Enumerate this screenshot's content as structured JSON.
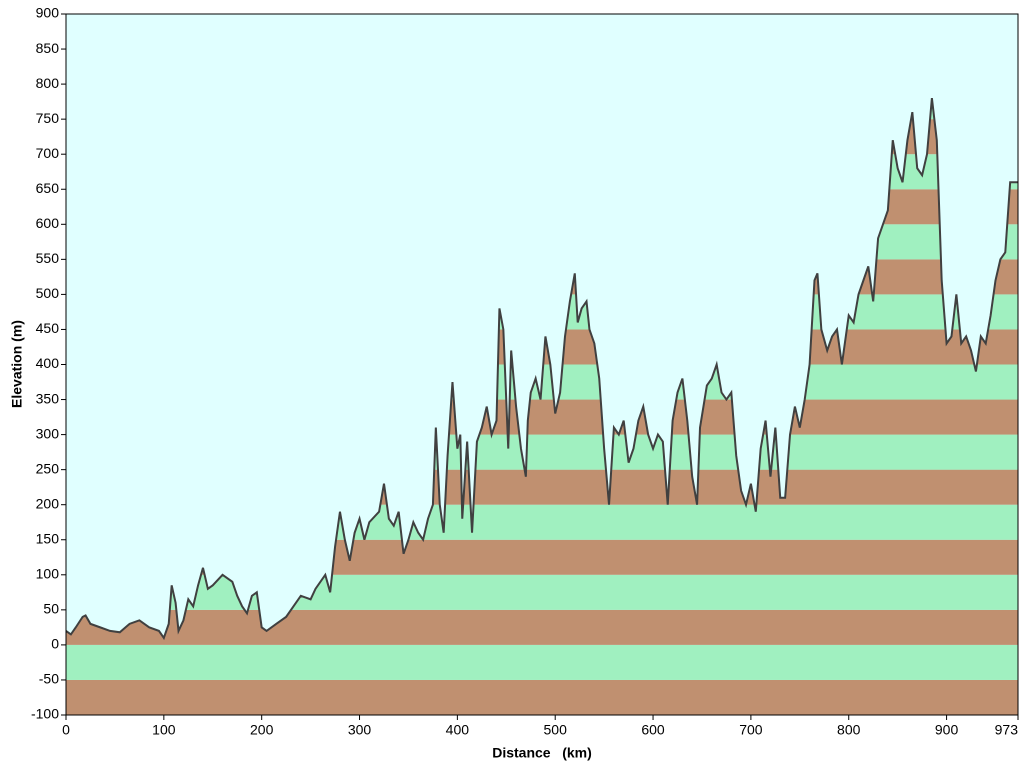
{
  "chart_data": {
    "type": "elevation",
    "xlabel": "Distance   (km)",
    "ylabel": "Elevation (m)",
    "xlim": [
      0,
      973
    ],
    "ylim": [
      -100,
      900
    ],
    "xticks": [
      0,
      100,
      200,
      300,
      400,
      500,
      600,
      700,
      800,
      900,
      973
    ],
    "yticks": [
      -100,
      -50,
      0,
      50,
      100,
      150,
      200,
      250,
      300,
      350,
      400,
      450,
      500,
      550,
      600,
      650,
      700,
      750,
      800,
      850,
      900
    ],
    "background": "#e0ffff",
    "band_colors": [
      "#c09070",
      "#a0f0c0"
    ],
    "line_color": "#404040",
    "x": [
      0,
      5,
      10,
      17,
      20,
      25,
      35,
      45,
      55,
      65,
      75,
      85,
      95,
      100,
      105,
      108,
      112,
      115,
      120,
      125,
      130,
      135,
      140,
      145,
      150,
      160,
      170,
      175,
      180,
      185,
      190,
      195,
      200,
      205,
      215,
      225,
      235,
      240,
      250,
      255,
      265,
      270,
      275,
      280,
      285,
      290,
      295,
      300,
      305,
      310,
      320,
      325,
      330,
      335,
      340,
      345,
      350,
      355,
      360,
      365,
      370,
      375,
      378,
      382,
      386,
      390,
      395,
      400,
      403,
      405,
      410,
      415,
      420,
      425,
      430,
      435,
      440,
      443,
      447,
      452,
      455,
      460,
      465,
      470,
      472,
      475,
      480,
      485,
      490,
      495,
      500,
      505,
      510,
      515,
      520,
      523,
      527,
      532,
      535,
      540,
      545,
      550,
      555,
      560,
      565,
      570,
      575,
      580,
      585,
      590,
      595,
      600,
      605,
      610,
      615,
      620,
      625,
      630,
      635,
      640,
      645,
      648,
      655,
      660,
      665,
      670,
      675,
      680,
      685,
      690,
      695,
      700,
      705,
      710,
      715,
      720,
      725,
      730,
      735,
      740,
      745,
      750,
      755,
      760,
      765,
      768,
      772,
      778,
      783,
      788,
      793,
      800,
      805,
      810,
      815,
      820,
      825,
      830,
      835,
      840,
      845,
      850,
      855,
      860,
      865,
      870,
      875,
      880,
      885,
      890,
      895,
      900,
      905,
      910,
      915,
      920,
      925,
      930,
      935,
      940,
      945,
      950,
      955,
      960,
      965,
      973
    ],
    "values": [
      20,
      15,
      25,
      40,
      42,
      30,
      25,
      20,
      18,
      30,
      35,
      25,
      20,
      10,
      30,
      85,
      60,
      20,
      35,
      65,
      55,
      85,
      110,
      80,
      85,
      100,
      90,
      70,
      55,
      45,
      70,
      75,
      25,
      20,
      30,
      40,
      60,
      70,
      65,
      80,
      100,
      75,
      140,
      190,
      150,
      120,
      160,
      180,
      150,
      175,
      190,
      230,
      180,
      170,
      190,
      130,
      150,
      175,
      160,
      150,
      180,
      200,
      310,
      200,
      160,
      270,
      375,
      280,
      300,
      180,
      290,
      160,
      290,
      310,
      340,
      300,
      320,
      480,
      450,
      280,
      420,
      340,
      280,
      240,
      320,
      360,
      380,
      350,
      440,
      400,
      330,
      360,
      440,
      490,
      530,
      460,
      480,
      490,
      450,
      430,
      380,
      280,
      200,
      310,
      300,
      320,
      260,
      280,
      320,
      340,
      300,
      280,
      300,
      290,
      200,
      320,
      360,
      380,
      320,
      240,
      200,
      310,
      370,
      380,
      400,
      360,
      350,
      360,
      270,
      220,
      200,
      230,
      190,
      280,
      320,
      240,
      310,
      210,
      210,
      300,
      340,
      310,
      350,
      400,
      520,
      530,
      450,
      420,
      440,
      450,
      400,
      470,
      460,
      500,
      520,
      540,
      490,
      580,
      600,
      620,
      720,
      680,
      660,
      720,
      760,
      680,
      670,
      700,
      780,
      720,
      520,
      430,
      440,
      500,
      430,
      440,
      420,
      390,
      440,
      430,
      470,
      520,
      550,
      560,
      660,
      660
    ]
  }
}
